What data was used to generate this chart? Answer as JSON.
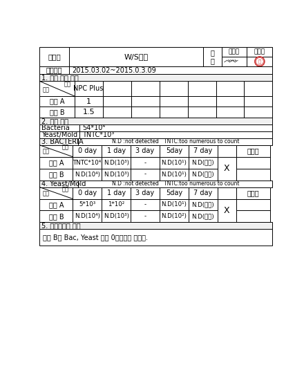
{
  "title_product": "제품명",
  "product_value": "W/S크림",
  "approval": "결\n재",
  "approver1": "담당자",
  "approver2": "확인자",
  "experiment_period_label": "실험기간",
  "experiment_period_value": "2015.03.02~2015.0.3.09",
  "section1": "1. 제품 방부 조성",
  "raw_material": "원료",
  "sample": "샘플",
  "npc_plus": "NPC Plus",
  "cream_a_label": "크림 A",
  "cream_a_value": "1",
  "cream_b_label": "크림 B",
  "cream_b_value": "1.5",
  "section2": "2. 초기 균수",
  "bacteria_label": "Bacteria",
  "bacteria_value": "54*10⁴",
  "yeast_mold_label": "Yeast/Mold",
  "yeast_mold_value": "TNTC*10³",
  "section3": "3. BACTERIA",
  "nd_note": "N.D :not detected   TNTC:too numerous to count",
  "time_label": "시간",
  "sample_label": "샘플",
  "days": [
    "0 day",
    "1 day",
    "3 day",
    "5day",
    "7 day",
    "",
    "낙하균"
  ],
  "bact_cream_a": [
    "TNTC*10⁴",
    "N.D(10³)",
    "-",
    "N.D(10¹)",
    "N.D(원액)",
    "",
    ""
  ],
  "bact_cream_b": [
    "N.D(10⁴)",
    "N.D(10³)",
    "-",
    "N.D(10¹)",
    "N.D(원액)",
    "",
    ""
  ],
  "bact_x": "X",
  "section4": "4. Yeast/Mold",
  "nd_note2": "N.D :not detected   TNTC:too numerous to count",
  "yeast_cream_a": [
    "5*10³",
    "1*10²",
    "-",
    "N.D(10¹)",
    "N.D(원액)",
    "",
    ""
  ],
  "yeast_cream_b": [
    "N.D(10⁴)",
    "N.D(10³)",
    "-",
    "N.D(10²)",
    "N.D(원액)",
    "",
    ""
  ],
  "yeast_x": "X",
  "section5": "5. 방부테스트 결과",
  "result_text": "크림 B는 Bac, Yeast 모두 0일차에서 잡혀다.",
  "bg_color": "#ffffff",
  "line_color": "#000000",
  "text_color": "#000000"
}
